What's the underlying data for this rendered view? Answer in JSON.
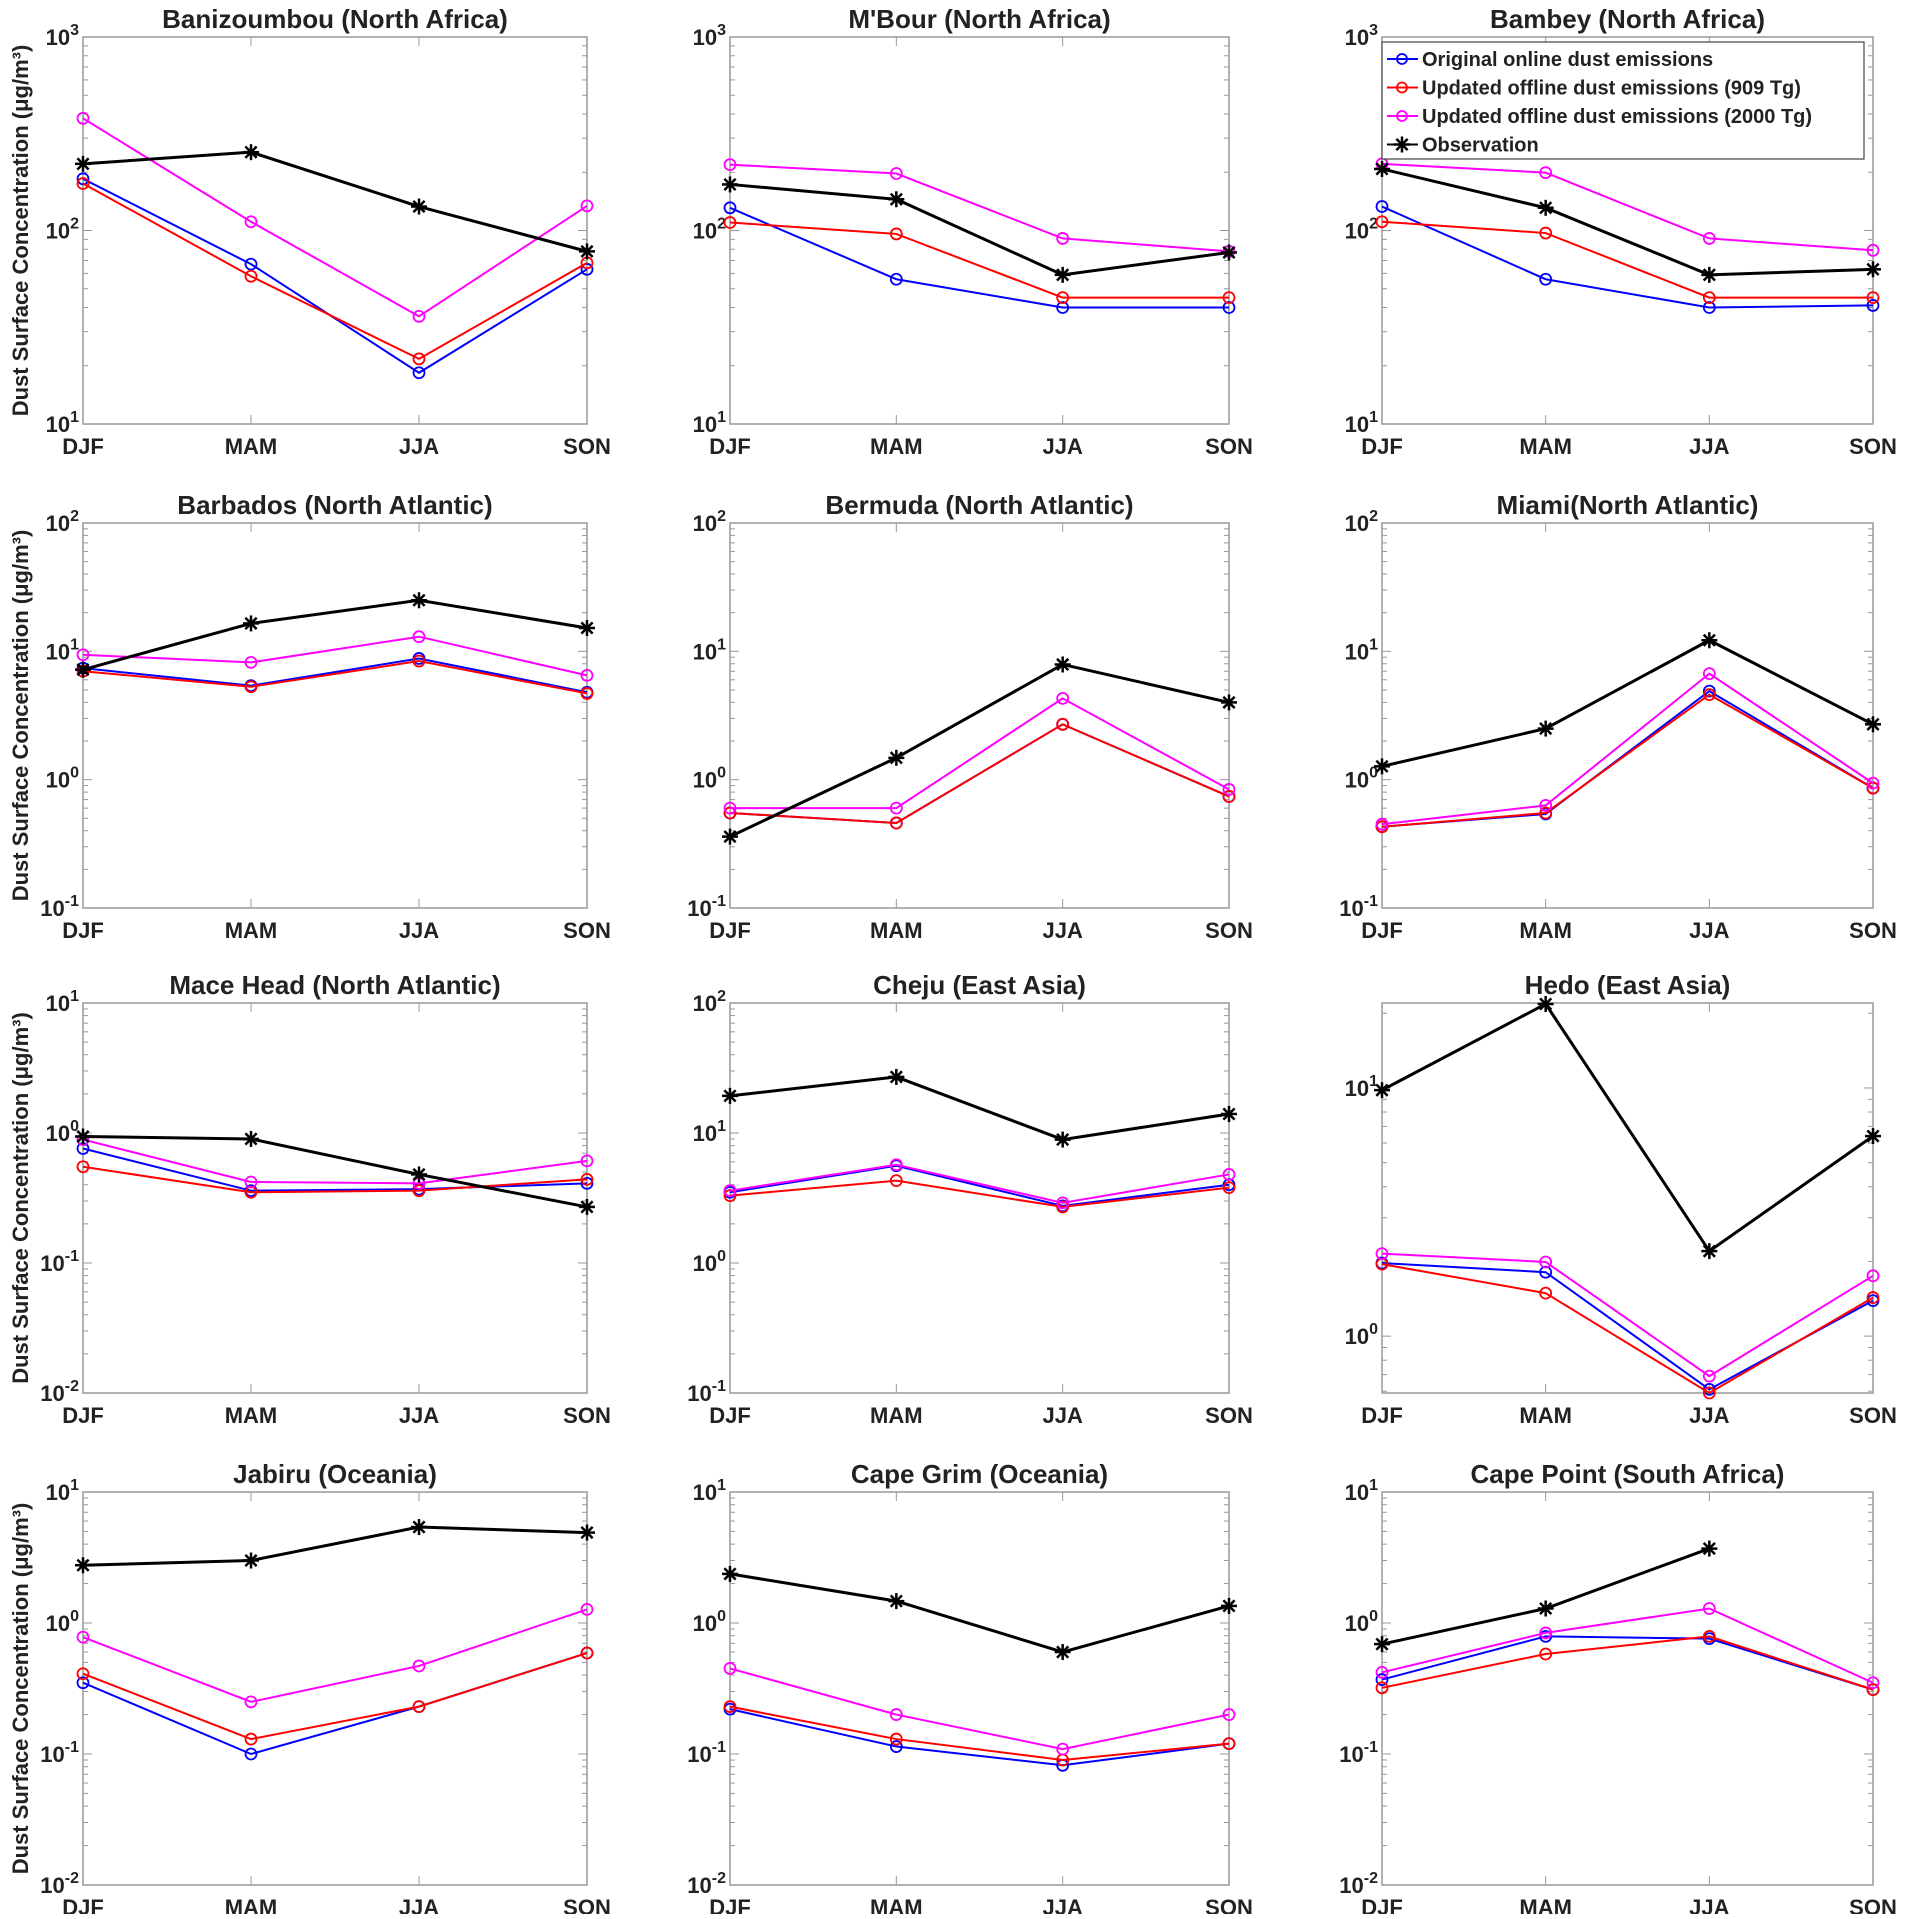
{
  "colors": {
    "original": "#0000ff",
    "offline_909": "#ff0000",
    "offline_2000": "#ff00ff",
    "observation": "#000000"
  },
  "legend": {
    "chart_index": 2,
    "location": "top-left",
    "entries": [
      {
        "label": "Original online dust emissions",
        "color": "#0000ff",
        "marker": "circle"
      },
      {
        "label": "Updated offline dust emissions (909 Tg)",
        "color": "#ff0000",
        "marker": "circle"
      },
      {
        "label": "Updated offline dust emissions (2000 Tg)",
        "color": "#ff00ff",
        "marker": "circle"
      },
      {
        "label": "Observation",
        "color": "#000000",
        "marker": "asterisk"
      }
    ]
  },
  "chart_data": [
    {
      "type": "line",
      "title": "Banizoumbou (North Africa)",
      "categories": [
        "DJF",
        "MAM",
        "JJA",
        "SON"
      ],
      "ylabel": "Dust Surface Concentration (μg/m³)",
      "yscale": "log",
      "ylim": [
        10,
        1000
      ],
      "yticks": [
        10,
        100,
        1000
      ],
      "ytick_labels": [
        "10^1",
        "10^2",
        "10^3"
      ],
      "series": [
        {
          "name": "Original online dust emissions",
          "values": [
            185,
            67,
            18.4,
            63
          ]
        },
        {
          "name": "Updated offline dust emissions (909 Tg)",
          "values": [
            175,
            58,
            21.7,
            68
          ]
        },
        {
          "name": "Updated offline dust emissions (2000 Tg)",
          "values": [
            380,
            111,
            36,
            134
          ]
        },
        {
          "name": "Observation",
          "values": [
            221,
            254,
            133,
            78
          ]
        }
      ]
    },
    {
      "type": "line",
      "title": "M'Bour (North Africa)",
      "categories": [
        "DJF",
        "MAM",
        "JJA",
        "SON"
      ],
      "ylabel": "",
      "yscale": "log",
      "ylim": [
        10,
        1000
      ],
      "yticks": [
        10,
        100,
        1000
      ],
      "ytick_labels": [
        "10^1",
        "10^2",
        "10^3"
      ],
      "series": [
        {
          "name": "Original online dust emissions",
          "values": [
            131,
            56,
            40,
            40
          ]
        },
        {
          "name": "Updated offline dust emissions (909 Tg)",
          "values": [
            110,
            96,
            45,
            45
          ]
        },
        {
          "name": "Updated offline dust emissions (2000 Tg)",
          "values": [
            219,
            197,
            91,
            78
          ]
        },
        {
          "name": "Observation",
          "values": [
            173,
            145,
            59,
            77
          ]
        }
      ]
    },
    {
      "type": "line",
      "title": "Bambey (North Africa)",
      "categories": [
        "DJF",
        "MAM",
        "JJA",
        "SON"
      ],
      "ylabel": "",
      "yscale": "log",
      "ylim": [
        10,
        1000
      ],
      "yticks": [
        10,
        100,
        1000
      ],
      "ytick_labels": [
        "10^1",
        "10^2",
        "10^3"
      ],
      "series": [
        {
          "name": "Original online dust emissions",
          "values": [
            133,
            56,
            40,
            41
          ]
        },
        {
          "name": "Updated offline dust emissions (909 Tg)",
          "values": [
            111,
            97,
            45,
            45
          ]
        },
        {
          "name": "Updated offline dust emissions (2000 Tg)",
          "values": [
            221,
            199,
            91,
            79
          ]
        },
        {
          "name": "Observation",
          "values": [
            208,
            131,
            59,
            63
          ]
        }
      ]
    },
    {
      "type": "line",
      "title": "Barbados (North Atlantic)",
      "categories": [
        "DJF",
        "MAM",
        "JJA",
        "SON"
      ],
      "ylabel": "Dust Surface Concentration (μg/m³)",
      "yscale": "log",
      "ylim": [
        0.1,
        100
      ],
      "yticks": [
        0.1,
        1,
        10,
        100
      ],
      "ytick_labels": [
        "10^-1",
        "10^0",
        "10^1",
        "10^2"
      ],
      "series": [
        {
          "name": "Original online dust emissions",
          "values": [
            7.4,
            5.4,
            8.8,
            4.8
          ]
        },
        {
          "name": "Updated offline dust emissions (909 Tg)",
          "values": [
            7.0,
            5.3,
            8.4,
            4.7
          ]
        },
        {
          "name": "Updated offline dust emissions (2000 Tg)",
          "values": [
            9.4,
            8.2,
            13,
            6.5
          ]
        },
        {
          "name": "Observation",
          "values": [
            7.2,
            16.5,
            25,
            15.2
          ]
        }
      ]
    },
    {
      "type": "line",
      "title": "Bermuda (North Atlantic)",
      "categories": [
        "DJF",
        "MAM",
        "JJA",
        "SON"
      ],
      "ylabel": "",
      "yscale": "log",
      "ylim": [
        0.1,
        100
      ],
      "yticks": [
        0.1,
        1,
        10,
        100
      ],
      "ytick_labels": [
        "10^-1",
        "10^0",
        "10^1",
        "10^2"
      ],
      "series": [
        {
          "name": "Original online dust emissions",
          "values": [
            0.55,
            0.46,
            2.7,
            0.74
          ]
        },
        {
          "name": "Updated offline dust emissions (909 Tg)",
          "values": [
            0.55,
            0.46,
            2.7,
            0.74
          ]
        },
        {
          "name": "Updated offline dust emissions (2000 Tg)",
          "values": [
            0.6,
            0.6,
            4.3,
            0.84
          ]
        },
        {
          "name": "Observation",
          "values": [
            0.36,
            1.48,
            7.9,
            4.0
          ]
        }
      ]
    },
    {
      "type": "line",
      "title": "Miami(North Atlantic)",
      "categories": [
        "DJF",
        "MAM",
        "JJA",
        "SON"
      ],
      "ylabel": "",
      "yscale": "log",
      "ylim": [
        0.1,
        100
      ],
      "yticks": [
        0.1,
        1,
        10,
        100
      ],
      "ytick_labels": [
        "10^-1",
        "10^0",
        "10^1",
        "10^2"
      ],
      "series": [
        {
          "name": "Original online dust emissions",
          "values": [
            0.43,
            0.54,
            4.9,
            0.86
          ]
        },
        {
          "name": "Updated offline dust emissions (909 Tg)",
          "values": [
            0.43,
            0.55,
            4.6,
            0.86
          ]
        },
        {
          "name": "Updated offline dust emissions (2000 Tg)",
          "values": [
            0.45,
            0.63,
            6.7,
            0.94
          ]
        },
        {
          "name": "Observation",
          "values": [
            1.27,
            2.5,
            12.2,
            2.7
          ]
        }
      ]
    },
    {
      "type": "line",
      "title": "Mace Head (North Atlantic)",
      "categories": [
        "DJF",
        "MAM",
        "JJA",
        "SON"
      ],
      "ylabel": "Dust Surface Concentration (μg/m³)",
      "yscale": "log",
      "ylim": [
        0.01,
        10
      ],
      "yticks": [
        0.01,
        0.1,
        1,
        10
      ],
      "ytick_labels": [
        "10^-2",
        "10^-1",
        "10^0",
        "10^1"
      ],
      "series": [
        {
          "name": "Original online dust emissions",
          "values": [
            0.76,
            0.36,
            0.37,
            0.41
          ]
        },
        {
          "name": "Updated offline dust emissions (909 Tg)",
          "values": [
            0.55,
            0.35,
            0.36,
            0.44
          ]
        },
        {
          "name": "Updated offline dust emissions (2000 Tg)",
          "values": [
            0.89,
            0.42,
            0.41,
            0.61
          ]
        },
        {
          "name": "Observation",
          "values": [
            0.94,
            0.9,
            0.48,
            0.27
          ]
        }
      ]
    },
    {
      "type": "line",
      "title": "Cheju (East Asia)",
      "categories": [
        "DJF",
        "MAM",
        "JJA",
        "SON"
      ],
      "ylabel": "",
      "yscale": "log",
      "ylim": [
        0.1,
        100
      ],
      "yticks": [
        0.1,
        1,
        10,
        100
      ],
      "ytick_labels": [
        "10^-1",
        "10^0",
        "10^1",
        "10^2"
      ],
      "series": [
        {
          "name": "Original online dust emissions",
          "values": [
            3.5,
            5.6,
            2.75,
            4.0
          ]
        },
        {
          "name": "Updated offline dust emissions (909 Tg)",
          "values": [
            3.3,
            4.3,
            2.7,
            3.8
          ]
        },
        {
          "name": "Updated offline dust emissions (2000 Tg)",
          "values": [
            3.6,
            5.7,
            2.9,
            4.8
          ]
        },
        {
          "name": "Observation",
          "values": [
            19.3,
            27,
            8.9,
            14
          ]
        }
      ]
    },
    {
      "type": "line",
      "title": "Hedo (East Asia)",
      "categories": [
        "DJF",
        "MAM",
        "JJA",
        "SON"
      ],
      "ylabel": "",
      "yscale": "log",
      "ylim": [
        0.59,
        22
      ],
      "yticks": [
        1,
        10
      ],
      "ytick_labels": [
        "10^0",
        "10^1"
      ],
      "series": [
        {
          "name": "Original online dust emissions",
          "values": [
            1.97,
            1.81,
            0.61,
            1.39
          ]
        },
        {
          "name": "Updated offline dust emissions (909 Tg)",
          "values": [
            1.95,
            1.49,
            0.59,
            1.43
          ]
        },
        {
          "name": "Updated offline dust emissions (2000 Tg)",
          "values": [
            2.15,
            1.99,
            0.69,
            1.75
          ]
        },
        {
          "name": "Observation",
          "values": [
            9.8,
            21.8,
            2.2,
            6.4
          ]
        }
      ]
    },
    {
      "type": "line",
      "title": "Jabiru (Oceania)",
      "categories": [
        "DJF",
        "MAM",
        "JJA",
        "SON"
      ],
      "ylabel": "Dust Surface Concentration (μg/m³)",
      "yscale": "log",
      "ylim": [
        0.01,
        10
      ],
      "yticks": [
        0.01,
        0.1,
        1,
        10
      ],
      "ytick_labels": [
        "10^-2",
        "10^-1",
        "10^0",
        "10^1"
      ],
      "series": [
        {
          "name": "Original online dust emissions",
          "values": [
            0.35,
            0.1,
            0.23,
            0.59
          ]
        },
        {
          "name": "Updated offline dust emissions (909 Tg)",
          "values": [
            0.41,
            0.13,
            0.23,
            0.59
          ]
        },
        {
          "name": "Updated offline dust emissions (2000 Tg)",
          "values": [
            0.78,
            0.25,
            0.47,
            1.27
          ]
        },
        {
          "name": "Observation",
          "values": [
            2.76,
            3.0,
            5.4,
            4.9
          ]
        }
      ]
    },
    {
      "type": "line",
      "title": "Cape Grim (Oceania)",
      "categories": [
        "DJF",
        "MAM",
        "JJA",
        "SON"
      ],
      "ylabel": "",
      "yscale": "log",
      "ylim": [
        0.01,
        10
      ],
      "yticks": [
        0.01,
        0.1,
        1,
        10
      ],
      "ytick_labels": [
        "10^-2",
        "10^-1",
        "10^0",
        "10^1"
      ],
      "series": [
        {
          "name": "Original online dust emissions",
          "values": [
            0.22,
            0.114,
            0.082,
            0.12
          ]
        },
        {
          "name": "Updated offline dust emissions (909 Tg)",
          "values": [
            0.23,
            0.13,
            0.09,
            0.12
          ]
        },
        {
          "name": "Updated offline dust emissions (2000 Tg)",
          "values": [
            0.45,
            0.2,
            0.109,
            0.2
          ]
        },
        {
          "name": "Observation",
          "values": [
            2.37,
            1.47,
            0.6,
            1.35
          ]
        }
      ]
    },
    {
      "type": "line",
      "title": "Cape Point (South Africa)",
      "categories": [
        "DJF",
        "MAM",
        "JJA",
        "SON"
      ],
      "ylabel": "",
      "yscale": "log",
      "ylim": [
        0.01,
        10
      ],
      "yticks": [
        0.01,
        0.1,
        1,
        10
      ],
      "ytick_labels": [
        "10^-2",
        "10^-1",
        "10^0",
        "10^1"
      ],
      "series": [
        {
          "name": "Original online dust emissions",
          "values": [
            0.37,
            0.79,
            0.76,
            0.31
          ]
        },
        {
          "name": "Updated offline dust emissions (909 Tg)",
          "values": [
            0.32,
            0.58,
            0.79,
            0.31
          ]
        },
        {
          "name": "Updated offline dust emissions (2000 Tg)",
          "values": [
            0.42,
            0.84,
            1.29,
            0.35
          ]
        },
        {
          "name": "Observation",
          "values": [
            0.69,
            1.29,
            3.7,
            null
          ]
        }
      ]
    }
  ]
}
